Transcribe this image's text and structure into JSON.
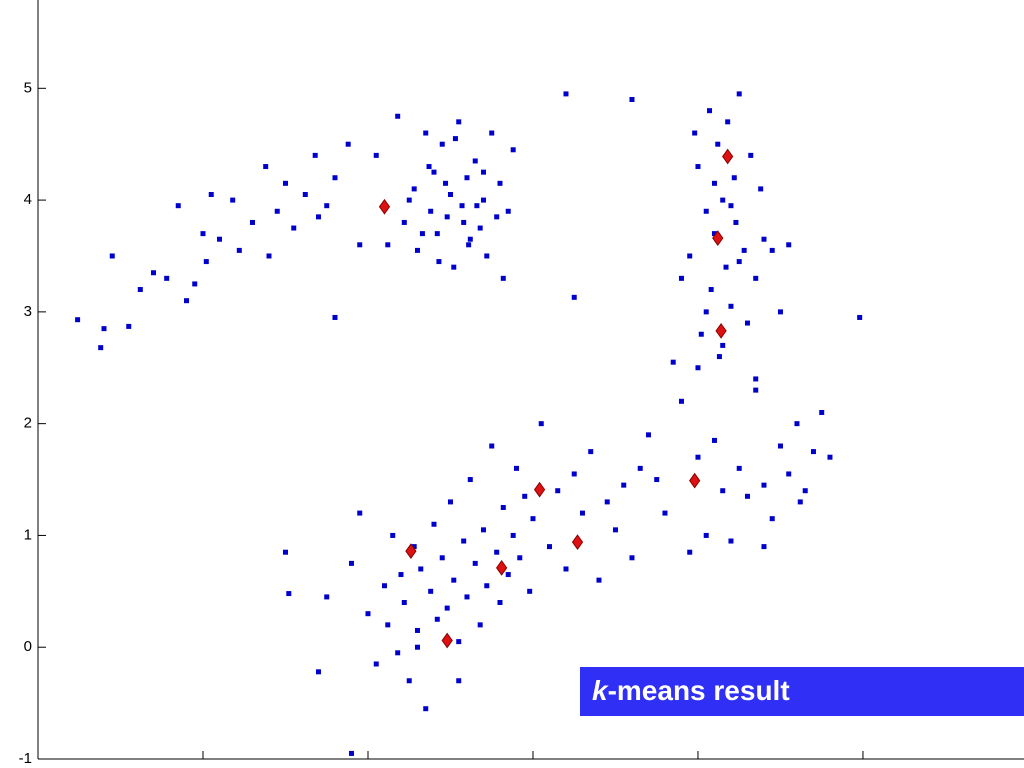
{
  "chart_data": {
    "type": "scatter",
    "xlim": [
      0,
      5.976
    ],
    "ylim": [
      -1,
      5.79
    ],
    "xticks": [
      1,
      2,
      3,
      4,
      5
    ],
    "yticks": [
      -1,
      0,
      1,
      2,
      3,
      4,
      5
    ],
    "series": [
      {
        "color": "#0000cc",
        "marker": "square",
        "x": [
          0.24,
          0.38,
          0.4,
          0.45,
          0.55,
          0.62,
          0.7,
          0.78,
          0.85,
          0.95,
          1.0,
          1.05,
          1.1,
          1.18,
          1.22,
          1.3,
          1.38,
          1.45,
          1.5,
          1.55,
          1.62,
          1.68,
          1.75,
          1.8,
          1.88,
          1.95,
          1.02,
          0.9,
          1.4,
          1.7,
          2.05,
          2.12,
          2.18,
          2.22,
          2.28,
          2.3,
          2.35,
          2.38,
          2.4,
          2.42,
          2.45,
          2.48,
          2.5,
          2.52,
          2.55,
          2.57,
          2.6,
          2.62,
          2.65,
          2.68,
          2.7,
          2.72,
          2.75,
          2.78,
          2.8,
          2.82,
          2.85,
          2.88,
          2.25,
          2.33,
          2.47,
          2.58,
          2.66,
          2.43,
          2.37,
          2.53,
          2.61,
          2.7,
          3.2,
          1.8,
          3.95,
          4.0,
          4.02,
          4.05,
          4.07,
          4.08,
          4.1,
          4.12,
          4.13,
          4.15,
          4.17,
          4.18,
          4.2,
          4.22,
          4.23,
          4.25,
          4.28,
          4.3,
          4.32,
          4.35,
          4.38,
          4.4,
          4.0,
          4.05,
          4.1,
          4.15,
          4.2,
          4.25,
          3.9,
          3.85,
          4.45,
          4.5,
          4.55,
          4.35,
          3.98,
          3.7,
          3.8,
          3.9,
          3.95,
          4.0,
          4.05,
          4.1,
          4.15,
          4.2,
          4.25,
          4.3,
          4.35,
          4.4,
          4.45,
          4.5,
          4.55,
          4.6,
          4.65,
          4.7,
          4.75,
          4.8,
          4.98,
          3.75,
          4.4,
          4.62,
          1.5,
          1.52,
          1.7,
          1.75,
          1.9,
          1.95,
          2.0,
          2.05,
          2.1,
          2.12,
          2.15,
          2.18,
          2.2,
          2.22,
          2.25,
          2.28,
          2.3,
          2.32,
          2.35,
          2.38,
          2.4,
          2.42,
          2.45,
          2.48,
          2.5,
          2.52,
          2.55,
          2.58,
          2.6,
          2.62,
          2.65,
          2.68,
          2.7,
          2.72,
          2.75,
          2.78,
          2.8,
          2.82,
          2.85,
          2.88,
          2.9,
          2.92,
          2.95,
          2.98,
          3.0,
          3.05,
          3.1,
          3.15,
          3.2,
          3.25,
          3.3,
          3.35,
          3.4,
          3.45,
          3.5,
          3.55,
          3.6,
          3.65,
          2.3,
          2.55,
          1.9,
          3.25,
          3.6
        ],
        "values": [
          2.93,
          2.68,
          2.85,
          3.5,
          2.87,
          3.2,
          3.35,
          3.3,
          3.95,
          3.25,
          3.7,
          4.05,
          3.65,
          4.0,
          3.55,
          3.8,
          4.3,
          3.9,
          4.15,
          3.75,
          4.05,
          4.4,
          3.95,
          4.2,
          4.5,
          3.6,
          3.45,
          3.1,
          3.5,
          3.85,
          4.4,
          3.6,
          4.75,
          3.8,
          4.1,
          3.55,
          4.6,
          3.9,
          4.25,
          3.7,
          4.5,
          3.85,
          4.05,
          3.4,
          4.7,
          3.95,
          4.2,
          3.65,
          4.35,
          3.75,
          4.0,
          3.5,
          4.6,
          3.85,
          4.15,
          3.3,
          3.9,
          4.45,
          4.0,
          3.7,
          4.15,
          3.8,
          3.95,
          3.45,
          4.3,
          4.55,
          3.6,
          4.25,
          4.95,
          2.95,
          3.5,
          4.3,
          2.8,
          3.9,
          4.8,
          3.2,
          3.7,
          4.5,
          2.6,
          4.0,
          3.4,
          4.7,
          3.05,
          4.2,
          3.8,
          4.95,
          3.55,
          2.9,
          4.4,
          3.3,
          4.1,
          3.65,
          2.5,
          3.0,
          4.15,
          2.7,
          3.95,
          3.45,
          3.3,
          2.55,
          3.55,
          3.0,
          3.6,
          2.4,
          4.6,
          1.9,
          1.2,
          2.2,
          0.85,
          1.7,
          1.0,
          1.85,
          1.4,
          0.95,
          1.6,
          1.35,
          2.3,
          1.45,
          1.15,
          1.8,
          1.55,
          2.0,
          1.4,
          1.75,
          2.1,
          1.7,
          2.95,
          1.5,
          0.9,
          1.3,
          0.85,
          0.48,
          -0.22,
          0.45,
          0.75,
          1.2,
          0.3,
          -0.15,
          0.55,
          0.2,
          1.0,
          -0.05,
          0.65,
          0.4,
          -0.3,
          0.9,
          0.15,
          0.7,
          -0.55,
          0.5,
          1.1,
          0.25,
          0.8,
          0.35,
          1.3,
          0.6,
          0.05,
          0.95,
          0.45,
          1.5,
          0.75,
          0.2,
          1.05,
          0.55,
          1.8,
          0.85,
          0.4,
          1.25,
          0.65,
          1.0,
          1.6,
          0.8,
          1.35,
          0.5,
          1.15,
          2.0,
          0.9,
          1.4,
          0.7,
          1.55,
          1.2,
          1.75,
          0.6,
          1.3,
          1.05,
          1.45,
          0.8,
          1.6,
          0.0,
          -0.3,
          -0.95,
          3.13,
          4.9
        ]
      },
      {
        "color": "#dd1111",
        "marker": "diamond",
        "x": [
          2.1,
          4.18,
          4.12,
          4.14,
          3.98,
          3.04,
          3.27,
          2.81,
          2.26,
          2.48
        ],
        "values": [
          3.94,
          4.39,
          3.66,
          2.83,
          1.49,
          1.41,
          0.94,
          0.71,
          0.86,
          0.06
        ]
      }
    ],
    "annotation": {
      "emphasis": "k",
      "text": "-means result",
      "color": "#2f2ff5"
    }
  }
}
